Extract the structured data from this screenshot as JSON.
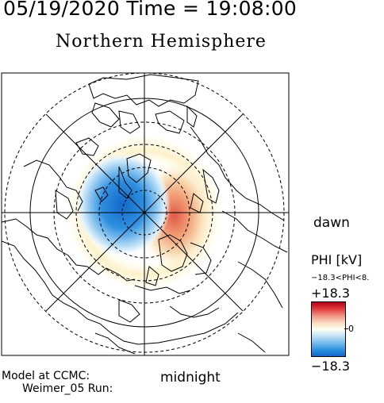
{
  "header": {
    "timestamp": "05/19/2020 Time = 19:08:00",
    "title": "Northern Hemisphere"
  },
  "map": {
    "projection": "polar",
    "hemisphere": "north",
    "labels": {
      "dawn": "dawn",
      "midnight": "midnight"
    }
  },
  "colorbar": {
    "title": "PHI [kV]",
    "range_label": "−18.3<PHI<8.",
    "max_label": "+18.3",
    "zero_label": "0",
    "min_label": "−18.3",
    "max_value": 18.3,
    "min_value": -18.3,
    "positive_color": "#c8102e",
    "negative_color": "#1a6fd1"
  },
  "footer": {
    "model_label": "Model at CCMC:",
    "run_label": "Weimer_05 Run:"
  }
}
